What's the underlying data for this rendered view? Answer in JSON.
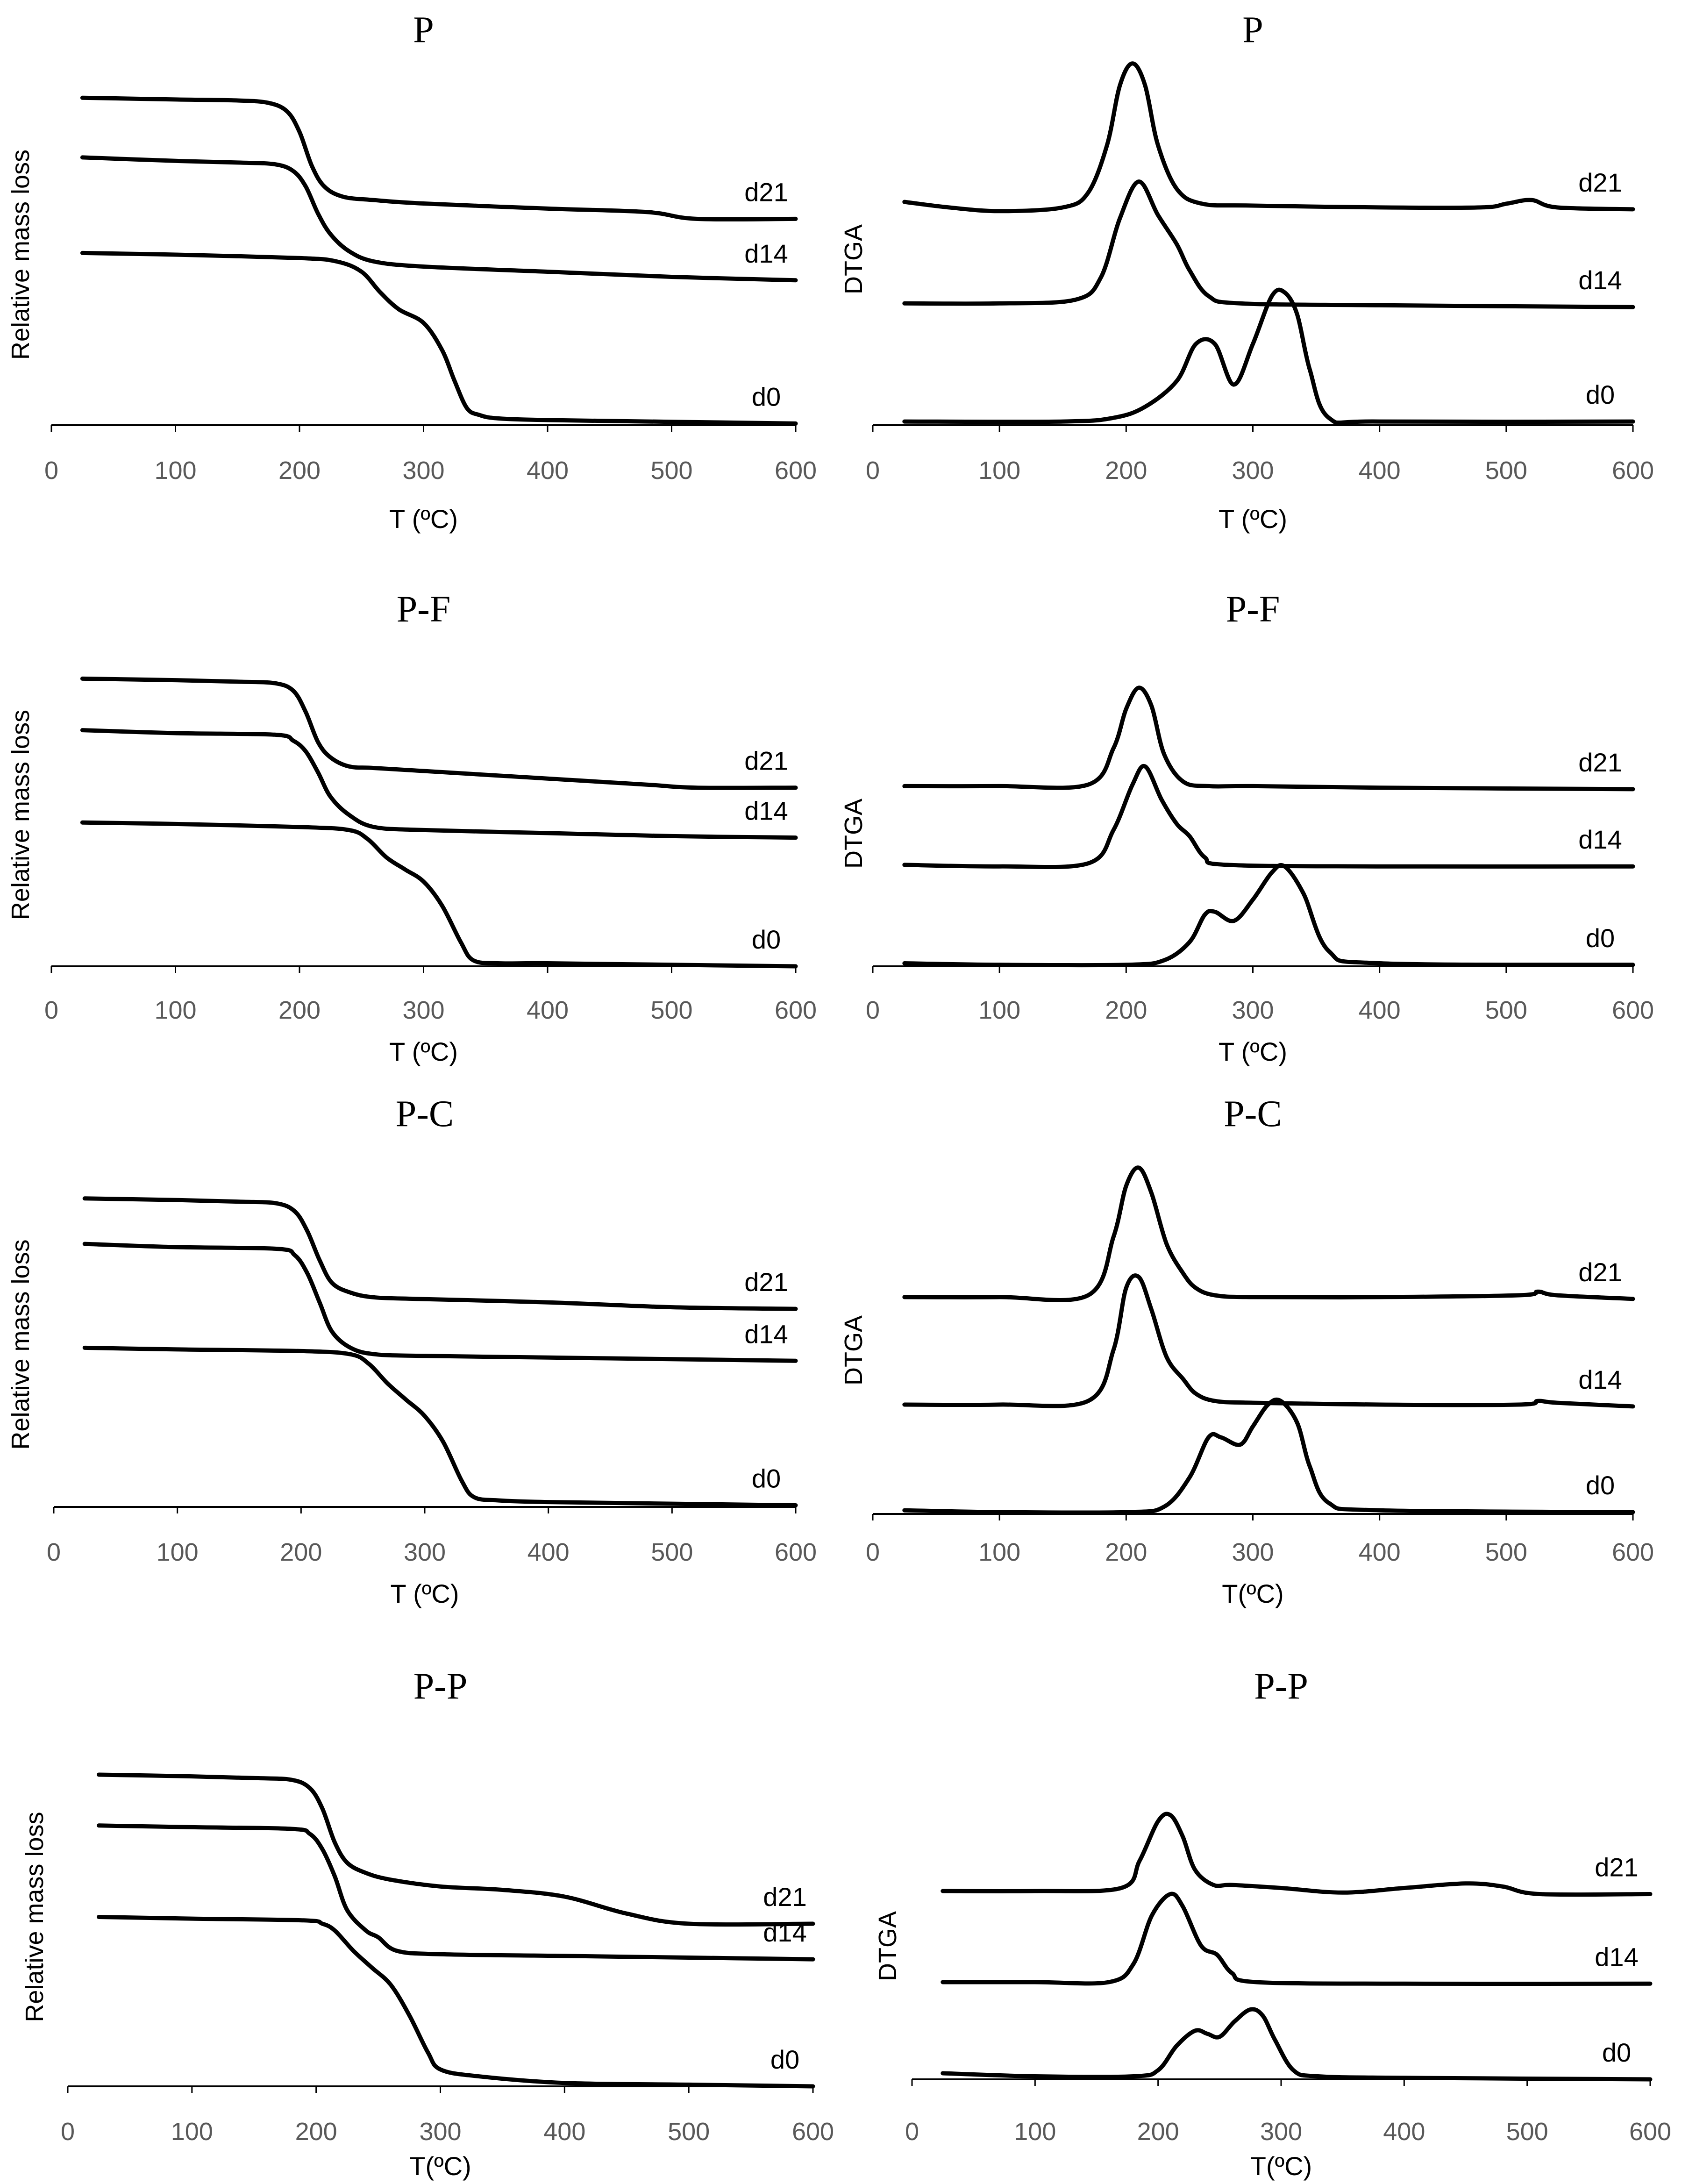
{
  "figure": {
    "panel_titles": [
      "P",
      "P",
      "P-F",
      "P-F",
      "P-C",
      "P-C",
      "P-P",
      "P-P"
    ]
  },
  "chart_data": [
    {
      "id": "P-TGA",
      "type": "line",
      "title": "P",
      "xlabel": "T (ºC)",
      "ylabel": "Relative mass loss",
      "xlim": [
        0,
        600
      ],
      "ylim": [
        0,
        1
      ],
      "xticks": [
        "0",
        "100",
        "200",
        "300",
        "400",
        "500",
        "600"
      ],
      "series": [
        {
          "name": "d21",
          "x": [
            25,
            100,
            150,
            175,
            190,
            200,
            210,
            220,
            235,
            260,
            300,
            400,
            480,
            520,
            600
          ],
          "y": [
            0.96,
            0.955,
            0.952,
            0.945,
            0.92,
            0.86,
            0.76,
            0.7,
            0.67,
            0.66,
            0.65,
            0.635,
            0.625,
            0.605,
            0.605
          ]
        },
        {
          "name": "d14",
          "x": [
            25,
            100,
            150,
            180,
            195,
            205,
            215,
            225,
            240,
            260,
            300,
            400,
            500,
            600
          ],
          "y": [
            0.785,
            0.775,
            0.77,
            0.765,
            0.745,
            0.7,
            0.62,
            0.56,
            0.51,
            0.48,
            0.465,
            0.45,
            0.435,
            0.425
          ]
        },
        {
          "name": "d0",
          "x": [
            25,
            100,
            200,
            230,
            250,
            265,
            280,
            300,
            315,
            325,
            335,
            345,
            360,
            400,
            500,
            600
          ],
          "y": [
            0.505,
            0.5,
            0.49,
            0.48,
            0.45,
            0.39,
            0.34,
            0.3,
            0.22,
            0.13,
            0.05,
            0.03,
            0.02,
            0.015,
            0.01,
            0.005
          ]
        }
      ]
    },
    {
      "id": "P-DTGA",
      "type": "line",
      "title": "P",
      "xlabel": "T (ºC)",
      "ylabel": "DTGA",
      "xlim": [
        0,
        600
      ],
      "ylim": [
        0,
        1
      ],
      "xticks": [
        "0",
        "100",
        "200",
        "300",
        "400",
        "500",
        "600"
      ],
      "series": [
        {
          "name": "d21",
          "x": [
            25,
            60,
            100,
            150,
            170,
            185,
            195,
            205,
            215,
            225,
            240,
            260,
            300,
            400,
            480,
            500,
            520,
            540,
            600
          ],
          "y": [
            0.605,
            0.59,
            0.58,
            0.59,
            0.63,
            0.76,
            0.92,
            0.98,
            0.92,
            0.76,
            0.64,
            0.6,
            0.595,
            0.59,
            0.59,
            0.6,
            0.61,
            0.59,
            0.585
          ]
        },
        {
          "name": "d14",
          "x": [
            25,
            100,
            160,
            180,
            195,
            210,
            225,
            240,
            250,
            265,
            290,
            400,
            600
          ],
          "y": [
            0.33,
            0.33,
            0.34,
            0.4,
            0.56,
            0.66,
            0.57,
            0.49,
            0.42,
            0.35,
            0.33,
            0.325,
            0.32
          ]
        },
        {
          "name": "d0",
          "x": [
            25,
            150,
            190,
            215,
            240,
            255,
            270,
            285,
            300,
            315,
            325,
            335,
            345,
            360,
            400,
            600
          ],
          "y": [
            0.01,
            0.01,
            0.02,
            0.05,
            0.12,
            0.22,
            0.22,
            0.11,
            0.22,
            0.35,
            0.36,
            0.3,
            0.15,
            0.02,
            0.01,
            0.01
          ]
        }
      ]
    },
    {
      "id": "P-F-TGA",
      "type": "line",
      "title": "P-F",
      "xlabel": "T (ºC)",
      "ylabel": "Relative mass loss",
      "xlim": [
        0,
        600
      ],
      "ylim": [
        0,
        1
      ],
      "xticks": [
        "0",
        "100",
        "200",
        "300",
        "400",
        "500",
        "600"
      ],
      "series": [
        {
          "name": "d21",
          "x": [
            25,
            100,
            150,
            180,
            195,
            205,
            215,
            225,
            240,
            260,
            300,
            400,
            480,
            520,
            600
          ],
          "y": [
            0.95,
            0.945,
            0.94,
            0.935,
            0.91,
            0.84,
            0.74,
            0.69,
            0.66,
            0.655,
            0.645,
            0.62,
            0.6,
            0.59,
            0.59
          ]
        },
        {
          "name": "d14",
          "x": [
            25,
            100,
            180,
            195,
            205,
            215,
            225,
            240,
            260,
            300,
            400,
            500,
            600
          ],
          "y": [
            0.78,
            0.77,
            0.765,
            0.745,
            0.71,
            0.64,
            0.56,
            0.5,
            0.46,
            0.45,
            0.44,
            0.43,
            0.425
          ]
        },
        {
          "name": "d0",
          "x": [
            25,
            100,
            200,
            240,
            255,
            270,
            285,
            300,
            315,
            330,
            340,
            360,
            400,
            500,
            600
          ],
          "y": [
            0.475,
            0.47,
            0.46,
            0.45,
            0.42,
            0.36,
            0.32,
            0.28,
            0.2,
            0.08,
            0.02,
            0.01,
            0.01,
            0.005,
            0.0
          ]
        }
      ]
    },
    {
      "id": "P-F-DTGA",
      "type": "line",
      "title": "P-F",
      "xlabel": "T (ºC)",
      "ylabel": "DTGA",
      "xlim": [
        0,
        600
      ],
      "ylim": [
        0,
        1
      ],
      "xticks": [
        "0",
        "100",
        "200",
        "300",
        "400",
        "500",
        "600"
      ],
      "series": [
        {
          "name": "d21",
          "x": [
            25,
            100,
            170,
            190,
            200,
            210,
            220,
            230,
            245,
            265,
            300,
            400,
            600
          ],
          "y": [
            0.595,
            0.595,
            0.6,
            0.72,
            0.85,
            0.92,
            0.86,
            0.7,
            0.61,
            0.595,
            0.595,
            0.59,
            0.585
          ]
        },
        {
          "name": "d14",
          "x": [
            25,
            100,
            170,
            190,
            205,
            215,
            228,
            240,
            250,
            262,
            280,
            400,
            600
          ],
          "y": [
            0.335,
            0.33,
            0.34,
            0.45,
            0.6,
            0.66,
            0.55,
            0.47,
            0.43,
            0.36,
            0.335,
            0.33,
            0.33
          ]
        },
        {
          "name": "d0",
          "x": [
            25,
            100,
            200,
            230,
            250,
            262,
            270,
            285,
            300,
            315,
            325,
            340,
            360,
            400,
            600
          ],
          "y": [
            0.01,
            0.005,
            0.005,
            0.02,
            0.08,
            0.17,
            0.18,
            0.15,
            0.22,
            0.31,
            0.33,
            0.24,
            0.05,
            0.01,
            0.005
          ]
        }
      ]
    },
    {
      "id": "P-C-TGA",
      "type": "line",
      "title": "P-C",
      "xlabel": "T (ºC)",
      "ylabel": "Relative mass loss",
      "xlim": [
        0,
        600
      ],
      "ylim": [
        0,
        1
      ],
      "xticks": [
        "0",
        "100",
        "200",
        "300",
        "400",
        "500",
        "600"
      ],
      "series": [
        {
          "name": "d21",
          "x": [
            25,
            100,
            150,
            180,
            195,
            205,
            215,
            225,
            240,
            260,
            300,
            400,
            500,
            600
          ],
          "y": [
            0.95,
            0.945,
            0.94,
            0.935,
            0.91,
            0.85,
            0.76,
            0.69,
            0.66,
            0.645,
            0.64,
            0.63,
            0.615,
            0.61
          ]
        },
        {
          "name": "d14",
          "x": [
            25,
            100,
            180,
            195,
            205,
            215,
            225,
            240,
            260,
            300,
            400,
            500,
            600
          ],
          "y": [
            0.81,
            0.8,
            0.795,
            0.775,
            0.72,
            0.63,
            0.54,
            0.49,
            0.47,
            0.465,
            0.46,
            0.455,
            0.45
          ]
        },
        {
          "name": "d0",
          "x": [
            25,
            100,
            200,
            240,
            255,
            270,
            285,
            300,
            315,
            330,
            340,
            360,
            400,
            500,
            600
          ],
          "y": [
            0.49,
            0.485,
            0.48,
            0.47,
            0.44,
            0.38,
            0.33,
            0.28,
            0.2,
            0.08,
            0.03,
            0.02,
            0.015,
            0.01,
            0.005
          ]
        }
      ]
    },
    {
      "id": "P-C-DTGA",
      "type": "line",
      "title": "P-C",
      "xlabel": "T(ºC)",
      "ylabel": "DTGA",
      "xlim": [
        0,
        600
      ],
      "ylim": [
        0,
        1
      ],
      "xticks": [
        "0",
        "100",
        "200",
        "300",
        "400",
        "500",
        "600"
      ],
      "series": [
        {
          "name": "d21",
          "x": [
            25,
            100,
            170,
            190,
            200,
            210,
            220,
            232,
            245,
            255,
            270,
            300,
            400,
            510,
            525,
            540,
            600
          ],
          "y": [
            0.595,
            0.595,
            0.6,
            0.76,
            0.9,
            0.95,
            0.88,
            0.74,
            0.66,
            0.62,
            0.6,
            0.595,
            0.595,
            0.6,
            0.61,
            0.6,
            0.59
          ]
        },
        {
          "name": "d14",
          "x": [
            25,
            100,
            170,
            190,
            200,
            210,
            220,
            232,
            245,
            255,
            270,
            300,
            400,
            510,
            525,
            540,
            600
          ],
          "y": [
            0.3,
            0.3,
            0.31,
            0.45,
            0.62,
            0.65,
            0.56,
            0.43,
            0.37,
            0.33,
            0.31,
            0.305,
            0.3,
            0.3,
            0.31,
            0.305,
            0.295
          ]
        },
        {
          "name": "d0",
          "x": [
            25,
            100,
            200,
            230,
            250,
            265,
            275,
            290,
            300,
            312,
            322,
            335,
            345,
            360,
            400,
            600
          ],
          "y": [
            0.01,
            0.005,
            0.005,
            0.02,
            0.1,
            0.21,
            0.21,
            0.19,
            0.24,
            0.3,
            0.31,
            0.25,
            0.13,
            0.03,
            0.01,
            0.005
          ]
        }
      ]
    },
    {
      "id": "P-P-TGA",
      "type": "line",
      "title": "P-P",
      "xlabel": "T(ºC)",
      "ylabel": "Relative mass loss",
      "xlim": [
        0,
        600
      ],
      "ylim": [
        0,
        1
      ],
      "xticks": [
        "0",
        "100",
        "200",
        "300",
        "400",
        "500",
        "600"
      ],
      "series": [
        {
          "name": "d21",
          "x": [
            25,
            100,
            150,
            180,
            195,
            205,
            215,
            225,
            240,
            260,
            300,
            350,
            400,
            450,
            500,
            600
          ],
          "y": [
            0.92,
            0.915,
            0.91,
            0.905,
            0.88,
            0.82,
            0.72,
            0.66,
            0.63,
            0.61,
            0.59,
            0.58,
            0.56,
            0.51,
            0.48,
            0.48
          ]
        },
        {
          "name": "d14",
          "x": [
            25,
            100,
            180,
            195,
            205,
            215,
            225,
            240,
            250,
            265,
            300,
            400,
            500,
            600
          ],
          "y": [
            0.77,
            0.765,
            0.76,
            0.745,
            0.7,
            0.62,
            0.52,
            0.46,
            0.44,
            0.4,
            0.39,
            0.385,
            0.38,
            0.375
          ]
        },
        {
          "name": "d0",
          "x": [
            25,
            100,
            190,
            205,
            215,
            230,
            245,
            260,
            275,
            290,
            300,
            330,
            400,
            500,
            600
          ],
          "y": [
            0.5,
            0.495,
            0.49,
            0.48,
            0.46,
            0.4,
            0.35,
            0.3,
            0.21,
            0.1,
            0.05,
            0.03,
            0.01,
            0.005,
            0.0
          ]
        }
      ]
    },
    {
      "id": "P-P-DTGA",
      "type": "line",
      "title": "P-P",
      "xlabel": "T(ºC)",
      "ylabel": "DTGA",
      "xlim": [
        0,
        600
      ],
      "ylim": [
        0,
        1
      ],
      "xticks": [
        "0",
        "100",
        "200",
        "300",
        "400",
        "500",
        "600"
      ],
      "series": [
        {
          "name": "d21",
          "x": [
            25,
            100,
            170,
            185,
            200,
            210,
            220,
            230,
            245,
            260,
            300,
            350,
            400,
            450,
            480,
            510,
            600
          ],
          "y": [
            0.62,
            0.62,
            0.63,
            0.72,
            0.85,
            0.87,
            0.8,
            0.69,
            0.64,
            0.64,
            0.63,
            0.615,
            0.63,
            0.645,
            0.635,
            0.61,
            0.61
          ]
        },
        {
          "name": "d14",
          "x": [
            25,
            100,
            160,
            180,
            195,
            210,
            220,
            235,
            248,
            260,
            280,
            400,
            600
          ],
          "y": [
            0.32,
            0.32,
            0.32,
            0.38,
            0.54,
            0.61,
            0.57,
            0.44,
            0.41,
            0.35,
            0.32,
            0.315,
            0.315
          ]
        },
        {
          "name": "d0",
          "x": [
            25,
            100,
            180,
            200,
            215,
            230,
            240,
            250,
            262,
            275,
            285,
            295,
            310,
            330,
            400,
            600
          ],
          "y": [
            0.02,
            0.01,
            0.01,
            0.03,
            0.11,
            0.16,
            0.15,
            0.14,
            0.19,
            0.23,
            0.21,
            0.13,
            0.03,
            0.01,
            0.005,
            0.0
          ]
        }
      ]
    }
  ]
}
